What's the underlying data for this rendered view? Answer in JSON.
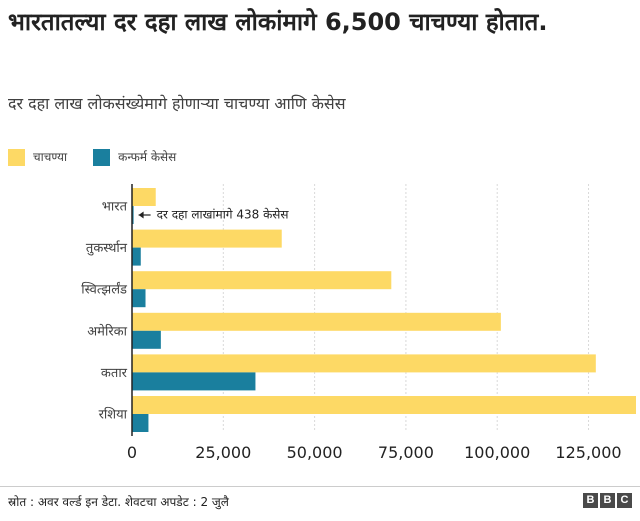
{
  "title": "भारतातल्या दर दहा लाख लोकांमागे 6,500 चाचण्या होतात.",
  "subtitle": "दर दहा लाख लोकसंख्येमागे होणाऱ्या चाचण्या आणि केसेस",
  "legend": {
    "tests_label": "चाचण्या",
    "cases_label": "कन्फर्म केसेस"
  },
  "annotation": "दर दहा लाखांमागे 438 केसेस",
  "footer": {
    "source": "स्रोत : अवर वर्ल्ड इन डेटा. शेवटचा अपडेट : 2 जुलै",
    "logo_letters": [
      "B",
      "B",
      "C"
    ]
  },
  "colors": {
    "tests": "#fdd965",
    "cases": "#1a7f9e",
    "grid": "#d9d9d9",
    "axis": "#222222"
  },
  "chart_data": {
    "type": "bar",
    "orientation": "horizontal",
    "categories": [
      "भारत",
      "तुकर्स्थान",
      "स्वित्झर्लंड",
      "अमेरिका",
      "कतार",
      "रशिया"
    ],
    "series": [
      {
        "name": "चाचण्या",
        "values": [
          6500,
          41000,
          71000,
          101000,
          127000,
          138000
        ]
      },
      {
        "name": "कन्फर्म केसेस",
        "values": [
          438,
          2400,
          3700,
          7900,
          33800,
          4500
        ]
      }
    ],
    "xlim": [
      0,
      138000
    ],
    "xticks": [
      0,
      25000,
      50000,
      75000,
      100000,
      125000
    ],
    "xtick_labels": [
      "0",
      "25,000",
      "50,000",
      "75,000",
      "100,000",
      "125,000"
    ],
    "grid": "vertical dashed",
    "legend_position": "top-left"
  }
}
